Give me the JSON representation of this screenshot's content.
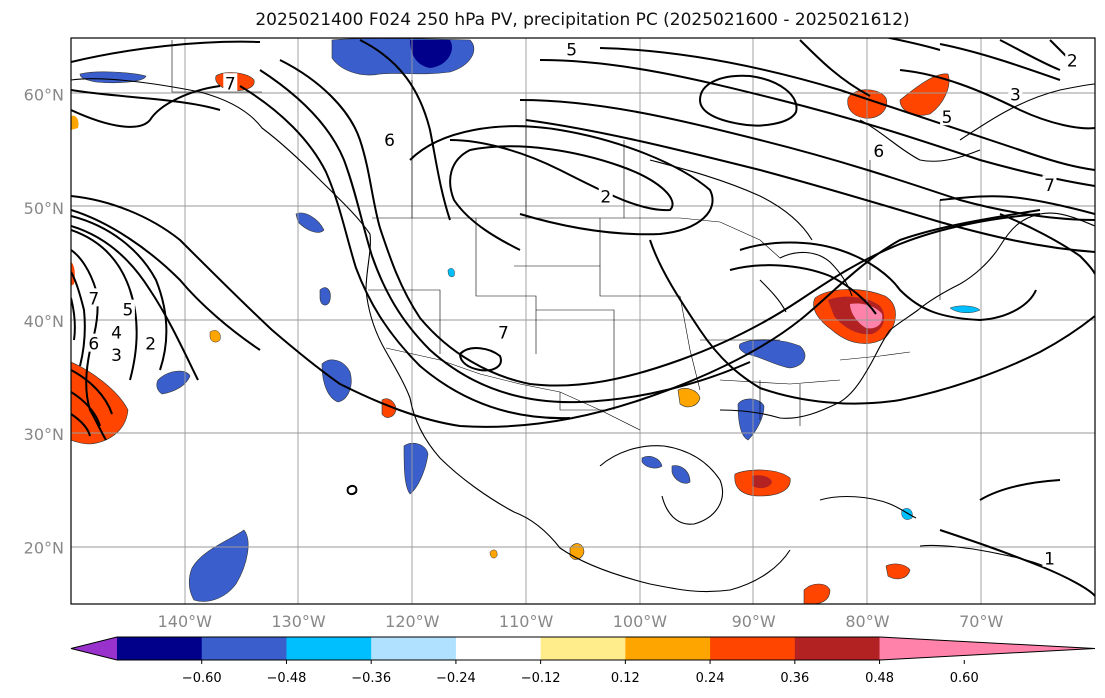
{
  "title": "2025021400 F024 250 hPa PV, precipitation PC (2025021600 - 2025021612)",
  "map": {
    "projection": "equirectangular",
    "lon_range": [
      -150,
      -60
    ],
    "lat_range": [
      15,
      65
    ],
    "lat_ticks": [
      {
        "value": 60,
        "label": "60°N"
      },
      {
        "value": 50,
        "label": "50°N"
      },
      {
        "value": 40,
        "label": "40°N"
      },
      {
        "value": 30,
        "label": "30°N"
      },
      {
        "value": 20,
        "label": "20°N"
      }
    ],
    "lon_ticks": [
      {
        "value": -140,
        "label": "140°W"
      },
      {
        "value": -130,
        "label": "130°W"
      },
      {
        "value": -120,
        "label": "120°W"
      },
      {
        "value": -110,
        "label": "110°W"
      },
      {
        "value": -100,
        "label": "100°W"
      },
      {
        "value": -90,
        "label": "90°W"
      },
      {
        "value": -80,
        "label": "80°W"
      },
      {
        "value": -70,
        "label": "70°W"
      }
    ],
    "grid": true
  },
  "contour_labels": [
    {
      "text": "5",
      "lon": -106,
      "lat": 64
    },
    {
      "text": "6",
      "lon": -122,
      "lat": 56
    },
    {
      "text": "2",
      "lon": -103,
      "lat": 51
    },
    {
      "text": "7",
      "lon": -112,
      "lat": 39
    },
    {
      "text": "7",
      "lon": -136,
      "lat": 61
    },
    {
      "text": "6",
      "lon": -79,
      "lat": 55
    },
    {
      "text": "5",
      "lon": -73,
      "lat": 58
    },
    {
      "text": "7",
      "lon": -64,
      "lat": 52
    },
    {
      "text": "2",
      "lon": -62,
      "lat": 63
    },
    {
      "text": "3",
      "lon": -67,
      "lat": 60
    },
    {
      "text": "1",
      "lon": -64,
      "lat": 19
    },
    {
      "text": "7",
      "lon": -148,
      "lat": 42
    },
    {
      "text": "6",
      "lon": -148,
      "lat": 38
    },
    {
      "text": "5",
      "lon": -145,
      "lat": 41
    },
    {
      "text": "4",
      "lon": -146,
      "lat": 39
    },
    {
      "text": "3",
      "lon": -146,
      "lat": 37
    },
    {
      "text": "2",
      "lon": -143,
      "lat": 38
    }
  ],
  "colorbar": {
    "ticks": [
      "−0.60",
      "−0.48",
      "−0.36",
      "−0.24",
      "−0.12",
      "0.12",
      "0.24",
      "0.36",
      "0.48",
      "0.60"
    ],
    "colors": [
      "#9932cc",
      "#00008b",
      "#3a5fcd",
      "#00bfff",
      "#b0e2ff",
      "#ffffff",
      "#ffec8b",
      "#ffa500",
      "#ff4500",
      "#b22222",
      "#ff82ab"
    ]
  }
}
